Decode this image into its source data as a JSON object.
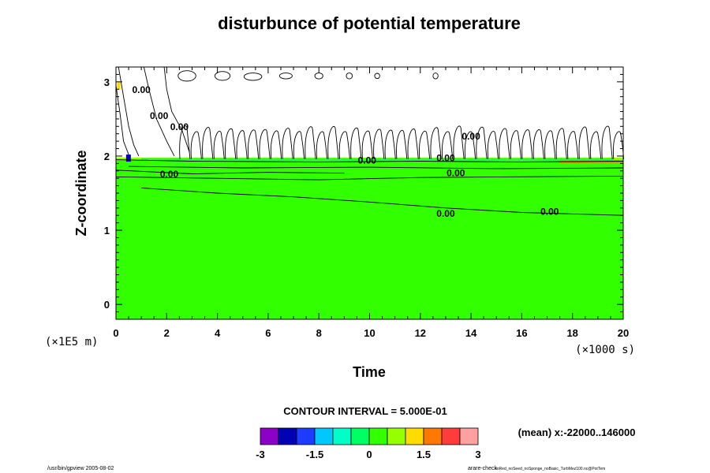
{
  "chart_data": {
    "type": "contour",
    "title": "disturbunce of potential temperature",
    "xlabel": "Time",
    "ylabel": "Z-coordinate",
    "x_unit": "(×1000 s)",
    "y_unit": "(×1E5 m)",
    "xlim": [
      0,
      20
    ],
    "ylim": [
      -0.2,
      3.2
    ],
    "x_ticks": [
      0,
      2,
      4,
      6,
      8,
      10,
      12,
      14,
      16,
      18,
      20
    ],
    "y_ticks": [
      0,
      1,
      2,
      3
    ],
    "contour_interval_text": "CONTOUR INTERVAL = 5.000E-01",
    "mean_text": "(mean) x:-22000..146000",
    "colorbar": {
      "levels": [
        -3,
        -2.5,
        -2,
        -1.5,
        -1,
        -0.5,
        0,
        0.5,
        1,
        1.5,
        2,
        2.5,
        3
      ],
      "tick_labels": [
        "-3",
        "-1.5",
        "0",
        "1.5",
        "3"
      ],
      "colors": [
        "#8c00c8",
        "#0000b4",
        "#1e3cff",
        "#00c8ff",
        "#00ffc8",
        "#00ff64",
        "#32ff00",
        "#96ff00",
        "#ffdc00",
        "#ff7800",
        "#ff3c3c",
        "#ffa0a0"
      ]
    },
    "contour_labels": [
      {
        "text": "0.00",
        "x": 2.1,
        "y": 1.71
      },
      {
        "text": "0.00",
        "x": 9.9,
        "y": 1.9
      },
      {
        "text": "0.00",
        "x": 13.4,
        "y": 1.73
      },
      {
        "text": "0.00",
        "x": 13.0,
        "y": 1.18
      },
      {
        "text": "0.00",
        "x": 17.1,
        "y": 1.21
      },
      {
        "text": "0.00",
        "x": 2.5,
        "y": 2.35
      },
      {
        "text": "0.00",
        "x": 1.7,
        "y": 2.5
      },
      {
        "text": "0.00",
        "x": 1.0,
        "y": 2.85
      },
      {
        "text": "0.00",
        "x": 14.0,
        "y": 2.22
      },
      {
        "text": "0.00",
        "x": 13.0,
        "y": 1.93
      }
    ],
    "field_description_values": {
      "green_region_top_z": 1.95,
      "dominant_value": 0.0
    }
  },
  "footer": {
    "left": "/usr/bin/gpview 2005-08-02",
    "right_main": "arare-check",
    "right_small": "noRed_noSeed_noSponge_noBasic_TurbMez100.nc@PotTem"
  }
}
